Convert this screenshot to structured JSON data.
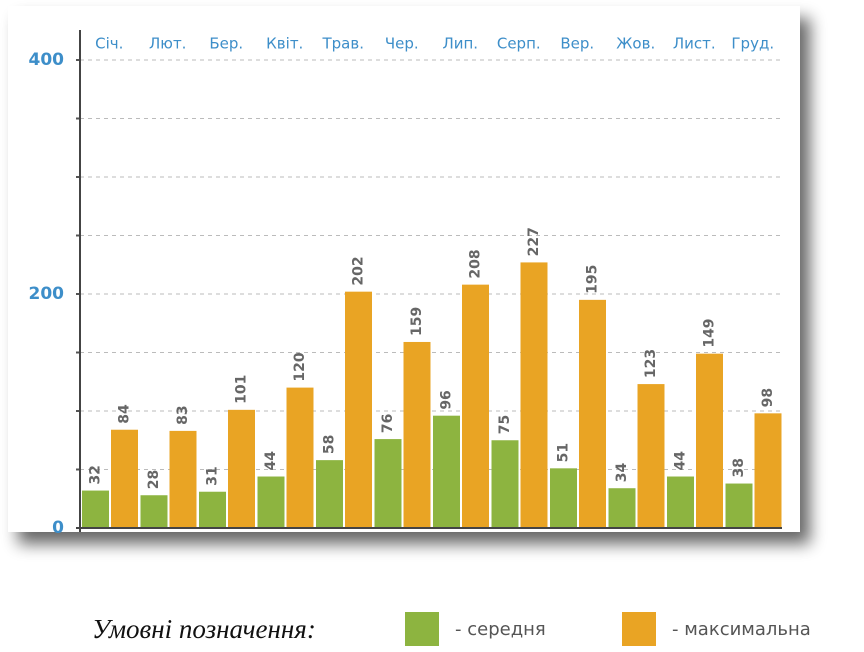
{
  "chart_data": {
    "type": "bar",
    "categories": [
      "Січ.",
      "Лют.",
      "Бер.",
      "Квіт.",
      "Трав.",
      "Чер.",
      "Лип.",
      "Серп.",
      "Вер.",
      "Жов.",
      "Лист.",
      "Груд."
    ],
    "series": [
      {
        "name": "- середня",
        "color": "#8db440",
        "values": [
          32,
          28,
          31,
          44,
          58,
          76,
          96,
          75,
          51,
          34,
          44,
          38
        ]
      },
      {
        "name": "- максимальна",
        "color": "#e9a424",
        "values": [
          84,
          83,
          101,
          120,
          202,
          159,
          208,
          227,
          195,
          123,
          149,
          98
        ]
      }
    ],
    "ylim": [
      0,
      400
    ],
    "yticks": [
      0,
      200,
      400
    ],
    "minor_yticks": [
      50,
      100,
      150,
      250,
      300,
      350
    ],
    "grid": true,
    "legend_title": "Умовні позначення:"
  }
}
